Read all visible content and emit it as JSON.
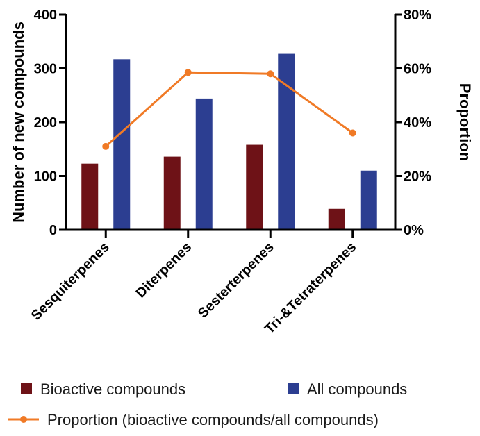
{
  "chart_data": {
    "type": "bar",
    "categories": [
      "Sesquiterpenes",
      "Diterpenes",
      "Sesterterpenes",
      "Tri-&Tetraterpenes"
    ],
    "series": [
      {
        "name": "Bioactive compounds",
        "values": [
          123,
          136,
          158,
          39
        ],
        "color": "#6e1217",
        "axis": "left"
      },
      {
        "name": "All compounds",
        "values": [
          317,
          244,
          327,
          110
        ],
        "color": "#2c3e91",
        "axis": "left"
      }
    ],
    "line_series": {
      "name": "Proportion (bioactive compounds/all compounds)",
      "values": [
        31,
        58.5,
        58,
        36
      ],
      "color": "#f07a26",
      "axis": "right"
    },
    "y_left": {
      "label": "Number of new compounds",
      "ylim": [
        0,
        400
      ],
      "ticks": [
        "0",
        "100",
        "200",
        "300",
        "400"
      ]
    },
    "y_right": {
      "label": "Proportion",
      "ylim": [
        0,
        80
      ],
      "ticks": [
        "0%",
        "20%",
        "40%",
        "60%",
        "80%"
      ]
    },
    "legend_placement": "bottom"
  }
}
